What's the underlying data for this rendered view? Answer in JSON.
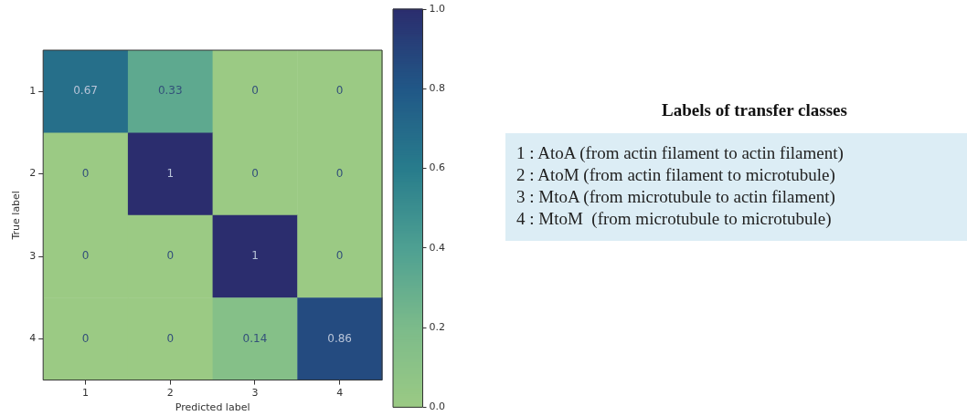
{
  "chart_data": [
    {
      "type": "heatmap",
      "xlabel": "Predicted label",
      "ylabel": "True label",
      "categories": [
        "1",
        "2",
        "3",
        "4"
      ],
      "y_categories": [
        "1",
        "2",
        "3",
        "4"
      ],
      "cells": [
        [
          0.67,
          0.33,
          0,
          0
        ],
        [
          0,
          1,
          0,
          0
        ],
        [
          0,
          0,
          1,
          0
        ],
        [
          0,
          0,
          0.14,
          0.86
        ]
      ],
      "data_labels": true,
      "clim": [
        0,
        1
      ],
      "cticks": [
        {
          "value": 0,
          "label": "0.0"
        },
        0.2,
        0.4,
        0.6,
        0.8,
        {
          "value": 1,
          "label": "1.0"
        }
      ]
    },
    {
      "type": "other",
      "title": "Labels of transfer classes",
      "annotations": [
        "1 : AtoA (from actin filament to actin filament)",
        "2 : AtoM (from actin filament to microtubule)",
        "3 : MtoA (from microtubule to actin filament)",
        "4 : MtoM  (from microtubule to microtubule)"
      ]
    }
  ]
}
